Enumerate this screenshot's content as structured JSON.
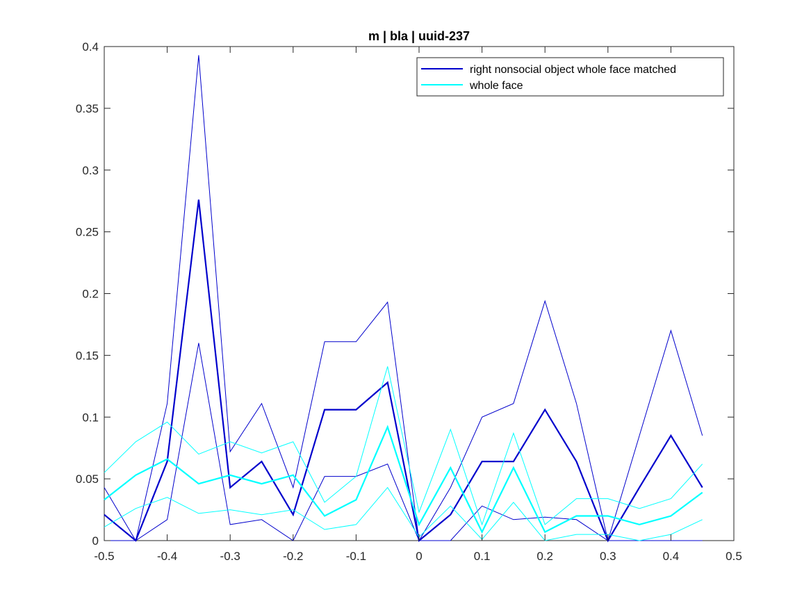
{
  "chart_data": {
    "type": "line",
    "title": "m | bla | uuid-237",
    "xlabel": "",
    "ylabel": "",
    "xlim": [
      -0.5,
      0.5
    ],
    "ylim": [
      0,
      0.4
    ],
    "grid": false,
    "legend_position": "top-right",
    "x_ticks": [
      "-0.5",
      "-0.4",
      "-0.3",
      "-0.2",
      "-0.1",
      "0",
      "0.1",
      "0.2",
      "0.3",
      "0.4",
      "0.5"
    ],
    "y_ticks": [
      "0",
      "0.05",
      "0.1",
      "0.15",
      "0.2",
      "0.25",
      "0.3",
      "0.35",
      "0.4"
    ],
    "x": [
      -0.5,
      -0.45,
      -0.4,
      -0.35,
      -0.3,
      -0.25,
      -0.2,
      -0.15,
      -0.1,
      -0.05,
      0,
      0.05,
      0.1,
      0.15,
      0.2,
      0.25,
      0.3,
      0.35,
      0.4,
      0.45
    ],
    "series": [
      {
        "name": "right nonsocial object whole face matched",
        "color": "#0000cc",
        "values": [
          0.021,
          0.0,
          0.064,
          0.276,
          0.043,
          0.064,
          0.021,
          0.106,
          0.106,
          0.128,
          0.0,
          0.021,
          0.064,
          0.064,
          0.106,
          0.064,
          0.0,
          0.043,
          0.085,
          0.043
        ],
        "upper": [
          0.043,
          0.0,
          0.111,
          0.393,
          0.072,
          0.111,
          0.043,
          0.161,
          0.161,
          0.193,
          0.0,
          0.043,
          0.1,
          0.111,
          0.194,
          0.111,
          0.0,
          0.085,
          0.17,
          0.085
        ],
        "lower": [
          0.0,
          0.0,
          0.017,
          0.16,
          0.013,
          0.017,
          0.0,
          0.052,
          0.052,
          0.062,
          0.0,
          0.0,
          0.028,
          0.017,
          0.019,
          0.017,
          0.0,
          0.0,
          0.0,
          0.0
        ]
      },
      {
        "name": "whole face",
        "color": "#00ffff",
        "values": [
          0.033,
          0.053,
          0.066,
          0.046,
          0.053,
          0.046,
          0.053,
          0.02,
          0.033,
          0.092,
          0.013,
          0.059,
          0.007,
          0.059,
          0.007,
          0.02,
          0.02,
          0.013,
          0.02,
          0.039
        ],
        "upper": [
          0.055,
          0.08,
          0.096,
          0.07,
          0.08,
          0.071,
          0.08,
          0.031,
          0.052,
          0.141,
          0.023,
          0.09,
          0.013,
          0.087,
          0.013,
          0.034,
          0.034,
          0.026,
          0.034,
          0.062
        ],
        "lower": [
          0.011,
          0.026,
          0.035,
          0.022,
          0.025,
          0.021,
          0.025,
          0.009,
          0.013,
          0.043,
          0.003,
          0.028,
          0.001,
          0.031,
          0.0,
          0.005,
          0.005,
          0.0,
          0.005,
          0.017
        ]
      }
    ]
  }
}
